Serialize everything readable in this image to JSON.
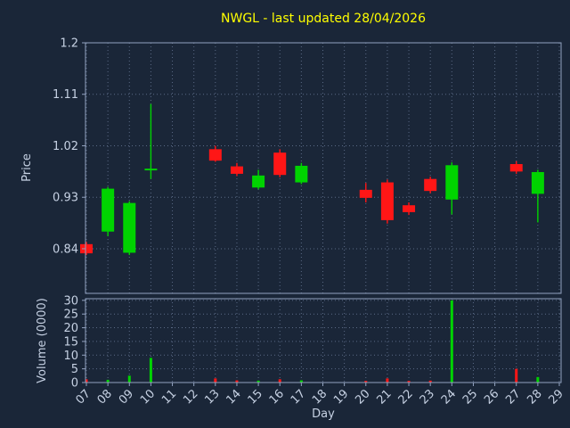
{
  "chart_data": {
    "type": "candlestick",
    "title": "NWGL - last updated 28/04/2026",
    "xlabel": "Day",
    "ylabel_price": "Price",
    "ylabel_volume": "Volume (0000)",
    "x_ticklabels": [
      "07",
      "08",
      "09",
      "10",
      "11",
      "12",
      "13",
      "14",
      "15",
      "16",
      "17",
      "18",
      "19",
      "20",
      "21",
      "22",
      "23",
      "24",
      "25",
      "26",
      "27",
      "28",
      "29"
    ],
    "price_ticks": [
      {
        "v": 0.84,
        "label": "0.84"
      },
      {
        "v": 0.93,
        "label": "0.93"
      },
      {
        "v": 1.02,
        "label": "1.02"
      },
      {
        "v": 1.11,
        "label": "1.11"
      },
      {
        "v": 1.2,
        "label": "1.2"
      }
    ],
    "volume_ticks": [
      {
        "v": 0,
        "label": "0"
      },
      {
        "v": 5,
        "label": "5"
      },
      {
        "v": 10,
        "label": "10"
      },
      {
        "v": 15,
        "label": "15"
      },
      {
        "v": 20,
        "label": "20"
      },
      {
        "v": 25,
        "label": "25"
      },
      {
        "v": 30,
        "label": "30"
      }
    ],
    "price_ylim": [
      0.762,
      1.2
    ],
    "volume_axis_max": 30.6,
    "candles": [
      {
        "day": "07",
        "open": 0.848,
        "high": 0.852,
        "low": 0.829,
        "close": 0.832,
        "volume": 1.2
      },
      {
        "day": "08",
        "open": 0.87,
        "high": 0.948,
        "low": 0.862,
        "close": 0.945,
        "volume": 1.0
      },
      {
        "day": "09",
        "open": 0.833,
        "high": 0.923,
        "low": 0.829,
        "close": 0.92,
        "volume": 2.5
      },
      {
        "day": "10",
        "open": 0.977,
        "high": 1.093,
        "low": 0.962,
        "close": 0.98,
        "volume": 9.0
      },
      {
        "day": "13",
        "open": 1.014,
        "high": 1.02,
        "low": 0.992,
        "close": 0.994,
        "volume": 1.5
      },
      {
        "day": "14",
        "open": 0.984,
        "high": 0.99,
        "low": 0.967,
        "close": 0.971,
        "volume": 0.8
      },
      {
        "day": "15",
        "open": 0.947,
        "high": 0.978,
        "low": 0.944,
        "close": 0.968,
        "volume": 0.7
      },
      {
        "day": "16",
        "open": 1.008,
        "high": 1.014,
        "low": 0.965,
        "close": 0.969,
        "volume": 1.2
      },
      {
        "day": "17",
        "open": 0.956,
        "high": 0.99,
        "low": 0.953,
        "close": 0.985,
        "volume": 0.8
      },
      {
        "day": "20",
        "open": 0.943,
        "high": 0.955,
        "low": 0.921,
        "close": 0.929,
        "volume": 0.6
      },
      {
        "day": "21",
        "open": 0.956,
        "high": 0.961,
        "low": 0.884,
        "close": 0.89,
        "volume": 1.5
      },
      {
        "day": "22",
        "open": 0.916,
        "high": 0.921,
        "low": 0.899,
        "close": 0.904,
        "volume": 0.6
      },
      {
        "day": "23",
        "open": 0.962,
        "high": 0.966,
        "low": 0.937,
        "close": 0.941,
        "volume": 0.7
      },
      {
        "day": "24",
        "open": 0.926,
        "high": 0.991,
        "low": 0.9,
        "close": 0.986,
        "volume": 30.0
      },
      {
        "day": "27",
        "open": 0.988,
        "high": 0.993,
        "low": 0.971,
        "close": 0.975,
        "volume": 5.0
      },
      {
        "day": "28",
        "open": 0.936,
        "high": 0.978,
        "low": 0.886,
        "close": 0.974,
        "volume": 2.0
      }
    ],
    "colors": {
      "background": "#1a2638",
      "up": "#00d300",
      "down": "#ff1616",
      "grid": "#5a6a85",
      "spine": "#93a3c0",
      "tick_text": "#c6d1e3",
      "title": "#ffff00"
    },
    "legend": "none",
    "grid": "dotted"
  }
}
